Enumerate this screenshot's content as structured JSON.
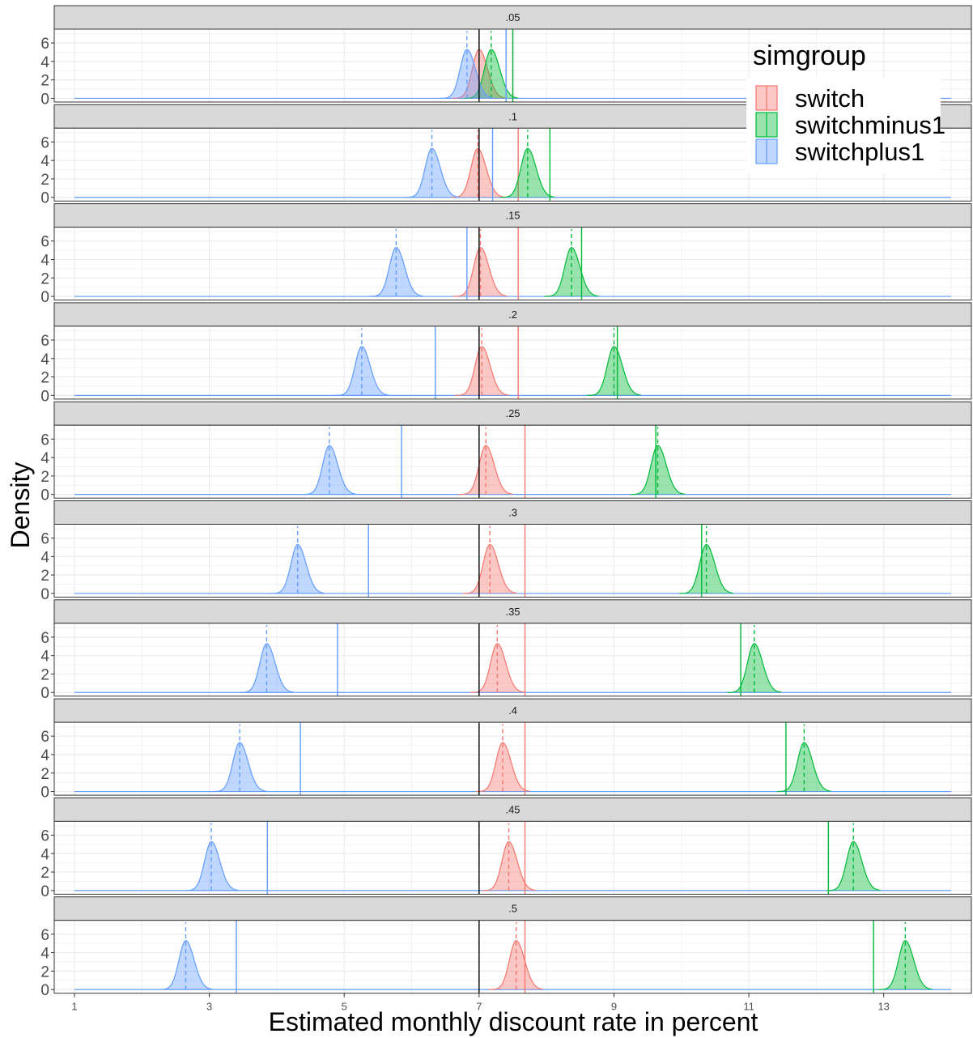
{
  "chart_data": {
    "type": "area",
    "title": "",
    "xlabel": "Estimated monthly discount rate in percent",
    "ylabel": "Density",
    "xlim": [
      0.7,
      14.3
    ],
    "ylim": [
      -0.4,
      7.5
    ],
    "x_ticks": [
      1,
      3,
      5,
      7,
      9,
      11,
      13
    ],
    "y_ticks": [
      0,
      2,
      4,
      6
    ],
    "grid": true,
    "legend": {
      "title": "simgroup",
      "position": "top-right",
      "entries": [
        "switch",
        "switchminus1",
        "switchplus1"
      ]
    },
    "colors": {
      "switch": "#F8766D",
      "switchminus1": "#00BA38",
      "switchplus1": "#619CFF",
      "true_rate_line": "#000000"
    },
    "true_rate": 7,
    "baseline_range": [
      1,
      14
    ],
    "density_sd": 0.1,
    "density_peak": 5.3,
    "panels": [
      {
        "label": ".05",
        "switch": {
          "mean": 7.0,
          "solid": 7.5
        },
        "switchminus1": {
          "mean": 7.18,
          "solid": 7.5
        },
        "switchplus1": {
          "mean": 6.82,
          "solid": 7.4
        }
      },
      {
        "label": ".1",
        "switch": {
          "mean": 6.98,
          "solid": 7.58
        },
        "switchminus1": {
          "mean": 7.72,
          "solid": 8.05
        },
        "switchplus1": {
          "mean": 6.3,
          "solid": 7.2
        }
      },
      {
        "label": ".15",
        "switch": {
          "mean": 7.02,
          "solid": 7.58
        },
        "switchminus1": {
          "mean": 8.37,
          "solid": 8.52
        },
        "switchplus1": {
          "mean": 5.77,
          "solid": 6.82
        }
      },
      {
        "label": ".2",
        "switch": {
          "mean": 7.04,
          "solid": 7.58
        },
        "switchminus1": {
          "mean": 9.0,
          "solid": 9.05
        },
        "switchplus1": {
          "mean": 5.26,
          "solid": 6.35
        }
      },
      {
        "label": ".25",
        "switch": {
          "mean": 7.1,
          "solid": 7.68
        },
        "switchminus1": {
          "mean": 9.65,
          "solid": 9.62
        },
        "switchplus1": {
          "mean": 4.78,
          "solid": 5.85
        }
      },
      {
        "label": ".3",
        "switch": {
          "mean": 7.16,
          "solid": 7.68
        },
        "switchminus1": {
          "mean": 10.37,
          "solid": 10.3
        },
        "switchplus1": {
          "mean": 4.31,
          "solid": 5.36
        }
      },
      {
        "label": ".35",
        "switch": {
          "mean": 7.27,
          "solid": 7.68
        },
        "switchminus1": {
          "mean": 11.08,
          "solid": 10.88
        },
        "switchplus1": {
          "mean": 3.85,
          "solid": 4.9
        }
      },
      {
        "label": ".4",
        "switch": {
          "mean": 7.35,
          "solid": 7.68
        },
        "switchminus1": {
          "mean": 11.82,
          "solid": 11.55
        },
        "switchplus1": {
          "mean": 3.45,
          "solid": 4.35
        }
      },
      {
        "label": ".45",
        "switch": {
          "mean": 7.44,
          "solid": 7.68
        },
        "switchminus1": {
          "mean": 12.55,
          "solid": 12.18
        },
        "switchplus1": {
          "mean": 3.03,
          "solid": 3.86
        }
      },
      {
        "label": ".5",
        "switch": {
          "mean": 7.55,
          "solid": 7.68
        },
        "switchminus1": {
          "mean": 13.32,
          "solid": 12.85
        },
        "switchplus1": {
          "mean": 2.65,
          "solid": 3.4
        }
      }
    ]
  }
}
